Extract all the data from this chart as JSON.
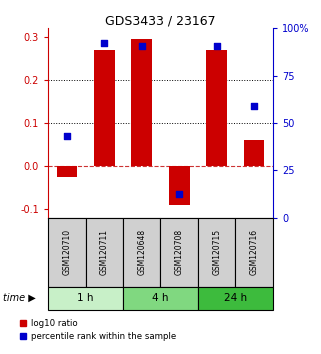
{
  "title": "GDS3433 / 23167",
  "samples": [
    "GSM120710",
    "GSM120711",
    "GSM120648",
    "GSM120708",
    "GSM120715",
    "GSM120716"
  ],
  "log10_ratio": [
    -0.025,
    0.27,
    0.295,
    -0.09,
    0.27,
    0.06
  ],
  "percentile_rank": [
    0.07,
    0.285,
    0.28,
    -0.065,
    0.28,
    0.14
  ],
  "time_groups": [
    {
      "label": "1 h",
      "start": 0,
      "end": 2,
      "color": "#c8f0c8"
    },
    {
      "label": "4 h",
      "start": 2,
      "end": 4,
      "color": "#80d880"
    },
    {
      "label": "24 h",
      "start": 4,
      "end": 6,
      "color": "#3dbb3d"
    }
  ],
  "bar_color": "#cc0000",
  "dot_color": "#0000cc",
  "ylim": [
    -0.12,
    0.32
  ],
  "y2lim": [
    0,
    100
  ],
  "yticks_left": [
    -0.1,
    0.0,
    0.1,
    0.2,
    0.3
  ],
  "yticks_right": [
    0,
    25,
    50,
    75,
    100
  ],
  "ytick_labels_right": [
    "0",
    "25",
    "50",
    "75",
    "100%"
  ],
  "hlines": [
    0.1,
    0.2
  ],
  "zero_line_color": "#cc3333",
  "hline_color": "#000000",
  "bar_width": 0.55,
  "dot_size": 18,
  "sample_box_color": "#d0d0d0",
  "sample_box_edge": "#000000",
  "bg_color": "#ffffff"
}
